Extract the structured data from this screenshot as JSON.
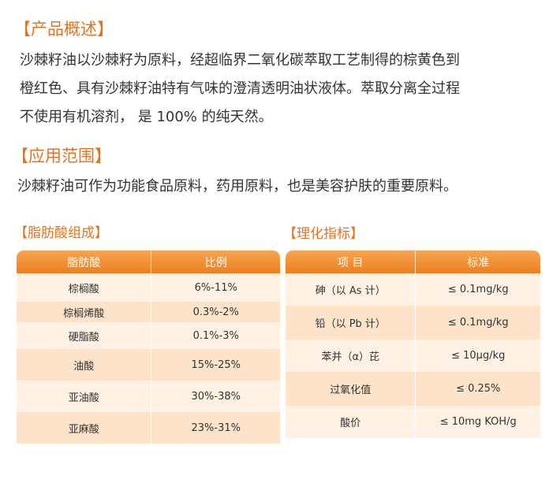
{
  "overview": {
    "heading": "【产品概述】",
    "lines": [
      "沙棘籽油以沙棘籽为原料，经超临界二氧化碳萃取工艺制得的棕黄色到",
      "橙红色、具有沙棘籽油特有气味的澄清透明油状液体。萃取分离全过程",
      "不使用有机溶剂， 是 100% 的纯天然。"
    ]
  },
  "application": {
    "heading": "【应用范围】",
    "text": "沙棘籽油可作为功能食品原料，药用原料，也是美容护肤的重要原料。"
  },
  "fatty_acids": {
    "heading": "【脂肪酸组成】",
    "headers": [
      "脂肪酸",
      "比例"
    ],
    "rows": [
      [
        "棕榈酸",
        "6%-11%"
      ],
      [
        "棕榈烯酸",
        "0.3%-2%"
      ],
      [
        "硬脂酸",
        "0.1%-3%"
      ],
      [
        "油酸",
        "15%-25%"
      ],
      [
        "亚油酸",
        "30%-38%"
      ],
      [
        "亚麻酸",
        "23%-31%"
      ]
    ]
  },
  "indicators": {
    "heading": "【理化指标】",
    "headers": [
      "项 目",
      "标准"
    ],
    "rows": [
      [
        "砷（以 As 计）",
        "≤ 0.1mg/kg"
      ],
      [
        "铅（以 Pb 计）",
        "≤ 0.1mg/kg"
      ],
      [
        "苯并（α）芘",
        "≤ 10μg/kg"
      ],
      [
        "过氧化值",
        "≤ 0.25%"
      ],
      [
        "酸价",
        "≤ 10mg KOH/g"
      ]
    ]
  },
  "colors": {
    "accent": "#e8731c",
    "header_gradient_top": "#f7a451",
    "header_gradient_bottom": "#ed7f1f",
    "row_light": "#fff2e4",
    "row_dark": "#fde3c9"
  }
}
